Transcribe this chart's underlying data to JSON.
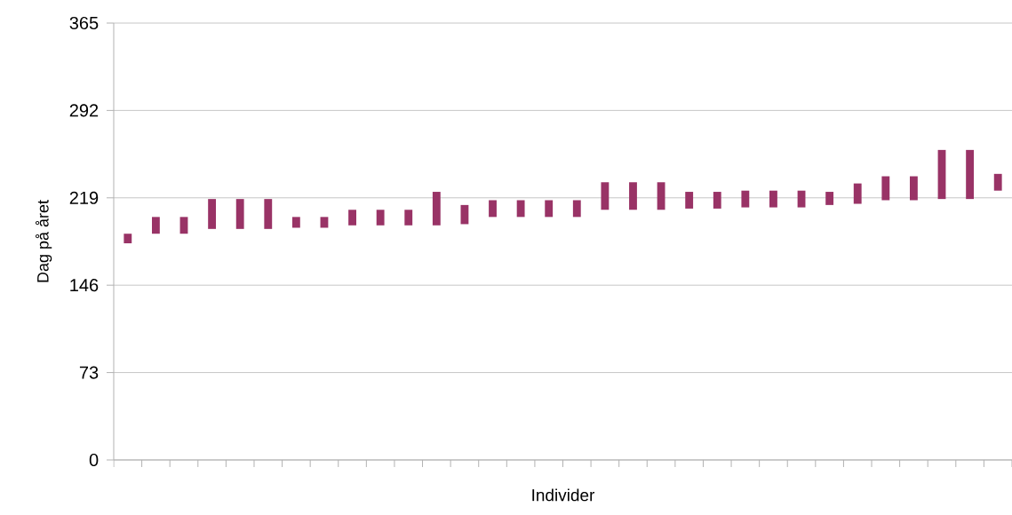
{
  "chart_data": {
    "type": "bar",
    "xlabel": "Individer",
    "ylabel": "Dag på året",
    "categories": [
      null,
      null,
      null,
      null,
      null,
      null,
      null,
      null,
      null,
      null,
      null,
      null,
      null,
      null,
      null,
      null,
      null,
      null,
      null,
      null,
      null,
      null,
      null,
      null,
      null,
      null,
      null,
      null,
      null,
      null,
      null,
      null
    ],
    "base": [
      181,
      189,
      189,
      193,
      193,
      193,
      194,
      194,
      196,
      196,
      196,
      196,
      197,
      203,
      203,
      203,
      203,
      209,
      209,
      209,
      210,
      210,
      211,
      211,
      211,
      213,
      214,
      217,
      217,
      218,
      218,
      225
    ],
    "values": [
      8,
      14,
      14,
      25,
      25,
      25,
      9,
      9,
      13,
      13,
      13,
      28,
      16,
      14,
      14,
      14,
      14,
      23,
      23,
      23,
      14,
      14,
      14,
      14,
      14,
      11,
      17,
      20,
      20,
      41,
      41,
      14
    ],
    "color": "#993366",
    "ylim": [
      0,
      365
    ],
    "yticks": [
      0,
      73,
      146,
      219,
      292,
      365
    ],
    "grid": "y"
  }
}
